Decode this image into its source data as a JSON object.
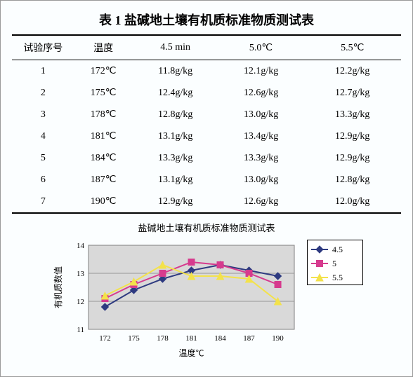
{
  "title": "表 1 盐碱地土壤有机质标准物质测试表",
  "table": {
    "headers": [
      "试验序号",
      "温度",
      "4.5 min",
      "5.0℃",
      "5.5℃"
    ],
    "rows": [
      [
        "1",
        "172℃",
        "11.8g/kg",
        "12.1g/kg",
        "12.2g/kg"
      ],
      [
        "2",
        "175℃",
        "12.4g/kg",
        "12.6g/kg",
        "12.7g/kg"
      ],
      [
        "3",
        "178℃",
        "12.8g/kg",
        "13.0g/kg",
        "13.3g/kg"
      ],
      [
        "4",
        "181℃",
        "13.1g/kg",
        "13.4g/kg",
        "12.9g/kg"
      ],
      [
        "5",
        "184℃",
        "13.3g/kg",
        "13.3g/kg",
        "12.9g/kg"
      ],
      [
        "6",
        "187℃",
        "13.1g/kg",
        "13.0g/kg",
        "12.8g/kg"
      ],
      [
        "7",
        "190℃",
        "12.9g/kg",
        "12.6g/kg",
        "12.0g/kg"
      ]
    ]
  },
  "chart": {
    "title": "盐碱地土壤有机质标准物质测试表",
    "type": "line",
    "plot_bg": "#d9d9d9",
    "grid_color": "#808080",
    "border_color": "#808080",
    "xlabel": "温度℃",
    "ylabel": "有机质数值",
    "label_fontsize": 12,
    "tick_fontsize": 11,
    "x_categories": [
      "172",
      "175",
      "178",
      "181",
      "184",
      "187",
      "190"
    ],
    "y_ticks": [
      11,
      12,
      13,
      14
    ],
    "ylim": [
      11,
      14
    ],
    "series": [
      {
        "name": "4.5",
        "color": "#2e3a80",
        "marker": "diamond",
        "values": [
          11.8,
          12.4,
          12.8,
          13.1,
          13.3,
          13.1,
          12.9
        ]
      },
      {
        "name": "5",
        "color": "#d63b8e",
        "marker": "square",
        "values": [
          12.1,
          12.6,
          13.0,
          13.4,
          13.3,
          13.0,
          12.6
        ]
      },
      {
        "name": "5.5",
        "color": "#f3e24b",
        "marker": "triangle",
        "values": [
          12.2,
          12.7,
          13.3,
          12.9,
          12.9,
          12.8,
          12.0
        ]
      }
    ],
    "legend": {
      "border_color": "#000000",
      "bg": "#ffffff"
    },
    "line_width": 2,
    "marker_size": 5
  }
}
